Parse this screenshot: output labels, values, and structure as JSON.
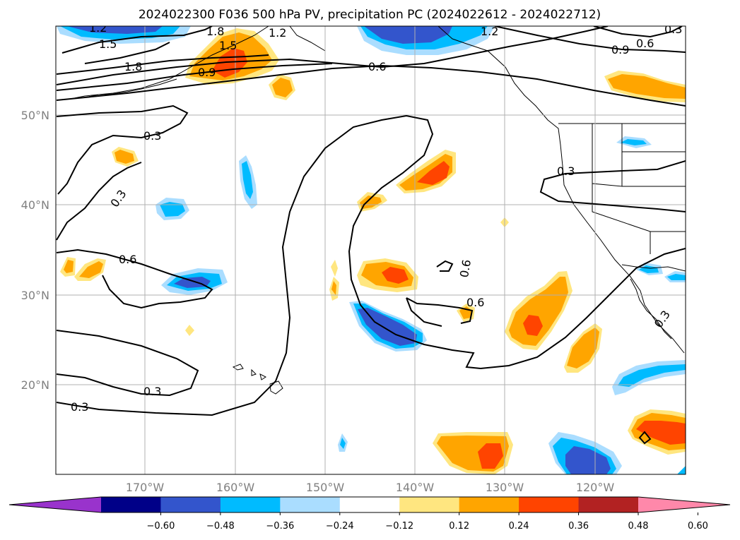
{
  "title": "2024022300 F036 500 hPa PV, precipitation PC (2024022612 - 2024022712)",
  "map": {
    "lat_labels": [
      "50°N",
      "40°N",
      "30°N",
      "20°N"
    ],
    "lon_labels": [
      "170°W",
      "160°W",
      "150°W",
      "140°W",
      "130°W",
      "120°W"
    ],
    "contour_labels": [
      "1.2",
      "1.8",
      "1.5",
      "1.2",
      "1.5",
      "1.8",
      "0.9",
      "1.2",
      "0.3",
      "0.9",
      "0.6",
      "0.6",
      "0.3",
      "0.3",
      "0.3",
      "0.6",
      "0.6",
      "0.6",
      "0.3",
      "0.3",
      "0.3"
    ]
  },
  "colorbar": {
    "ticks": [
      "−0.60",
      "−0.48",
      "−0.36",
      "−0.24",
      "−0.12",
      "0.12",
      "0.24",
      "0.36",
      "0.48",
      "0.60"
    ],
    "colors": [
      "#9933cc",
      "#000088",
      "#3355cc",
      "#00bbff",
      "#aaddff",
      "#ffffff",
      "#ffe680",
      "#ffa500",
      "#ff4400",
      "#b22222",
      "#ff88aa"
    ]
  }
}
